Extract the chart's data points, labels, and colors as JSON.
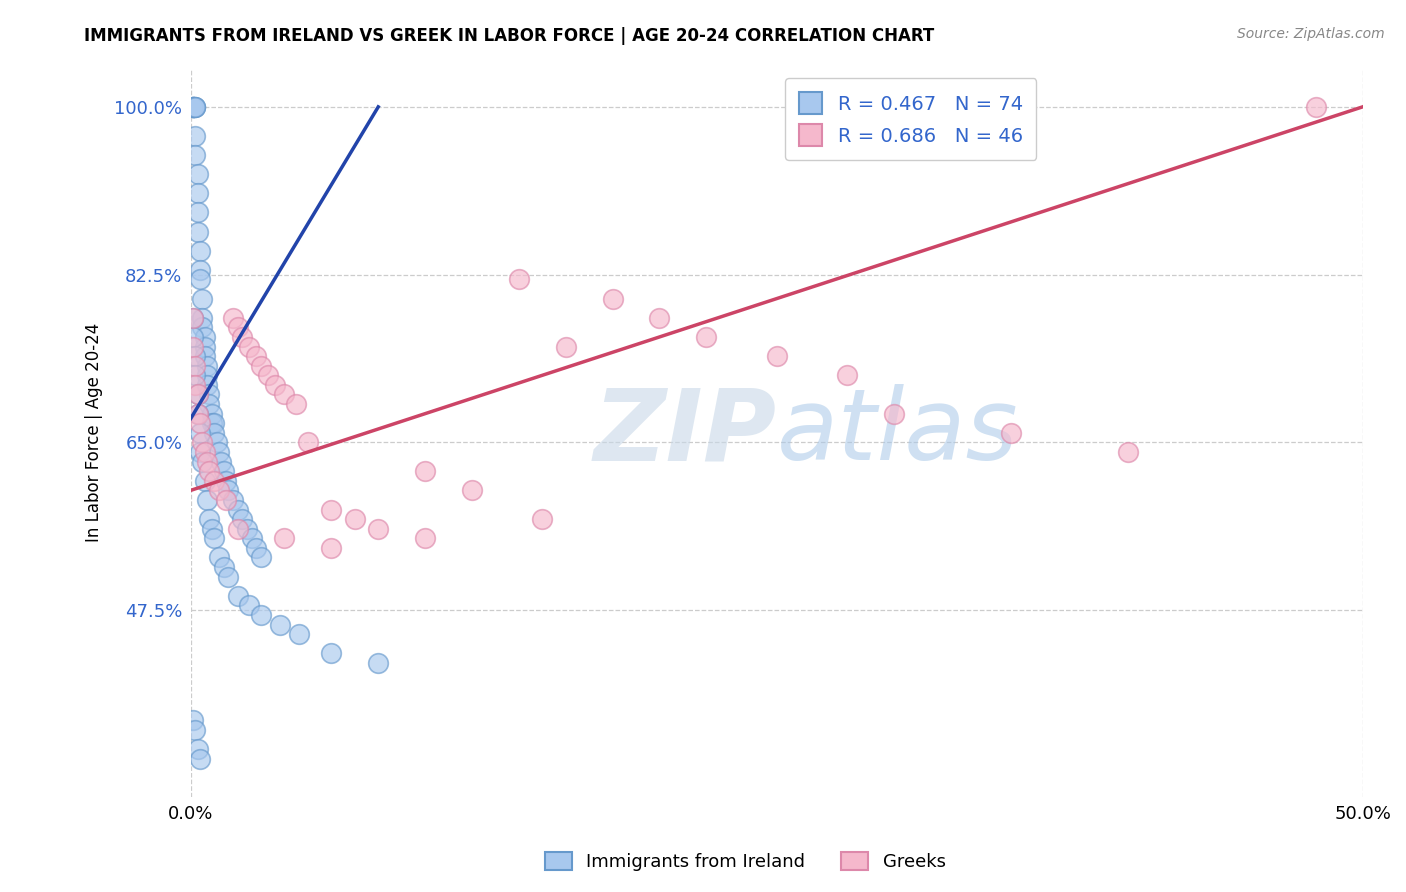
{
  "title": "IMMIGRANTS FROM IRELAND VS GREEK IN LABOR FORCE | AGE 20-24 CORRELATION CHART",
  "source": "Source: ZipAtlas.com",
  "ylabel": "In Labor Force | Age 20-24",
  "ireland_face_color": "#a8c8ee",
  "ireland_edge_color": "#6699cc",
  "greek_face_color": "#f5b8cc",
  "greek_edge_color": "#dd88aa",
  "ireland_line_color": "#2244aa",
  "greek_line_color": "#cc4466",
  "blue_text_color": "#3366cc",
  "legend_r1": "0.467",
  "legend_n1": "74",
  "legend_r2": "0.686",
  "legend_n2": "46",
  "xlim": [
    0.0,
    0.5
  ],
  "ylim": [
    0.28,
    1.04
  ],
  "ytick_vals": [
    1.0,
    0.825,
    0.65,
    0.475
  ],
  "ytick_labels": [
    "100.0%",
    "82.5%",
    "65.0%",
    "47.5%"
  ],
  "xtick_vals": [
    0.0,
    0.5
  ],
  "xtick_labels": [
    "0.0%",
    "50.0%"
  ],
  "ireland_x": [
    0.001,
    0.001,
    0.001,
    0.001,
    0.001,
    0.001,
    0.002,
    0.002,
    0.002,
    0.002,
    0.002,
    0.003,
    0.003,
    0.003,
    0.003,
    0.004,
    0.004,
    0.004,
    0.005,
    0.005,
    0.005,
    0.006,
    0.006,
    0.006,
    0.007,
    0.007,
    0.007,
    0.008,
    0.008,
    0.009,
    0.009,
    0.01,
    0.01,
    0.011,
    0.012,
    0.013,
    0.014,
    0.015,
    0.016,
    0.018,
    0.02,
    0.022,
    0.024,
    0.026,
    0.028,
    0.03,
    0.001,
    0.001,
    0.002,
    0.002,
    0.003,
    0.003,
    0.004,
    0.004,
    0.005,
    0.006,
    0.007,
    0.008,
    0.009,
    0.01,
    0.012,
    0.014,
    0.016,
    0.02,
    0.025,
    0.03,
    0.038,
    0.046,
    0.06,
    0.08,
    0.001,
    0.002,
    0.003,
    0.004
  ],
  "ireland_y": [
    1.0,
    1.0,
    1.0,
    1.0,
    1.0,
    1.0,
    1.0,
    1.0,
    1.0,
    0.97,
    0.95,
    0.93,
    0.91,
    0.89,
    0.87,
    0.85,
    0.83,
    0.82,
    0.8,
    0.78,
    0.77,
    0.76,
    0.75,
    0.74,
    0.73,
    0.72,
    0.71,
    0.7,
    0.69,
    0.68,
    0.67,
    0.67,
    0.66,
    0.65,
    0.64,
    0.63,
    0.62,
    0.61,
    0.6,
    0.59,
    0.58,
    0.57,
    0.56,
    0.55,
    0.54,
    0.53,
    0.78,
    0.76,
    0.74,
    0.72,
    0.7,
    0.68,
    0.66,
    0.64,
    0.63,
    0.61,
    0.59,
    0.57,
    0.56,
    0.55,
    0.53,
    0.52,
    0.51,
    0.49,
    0.48,
    0.47,
    0.46,
    0.45,
    0.43,
    0.42,
    0.36,
    0.35,
    0.33,
    0.32
  ],
  "greek_x": [
    0.001,
    0.001,
    0.002,
    0.002,
    0.003,
    0.003,
    0.004,
    0.005,
    0.006,
    0.007,
    0.008,
    0.01,
    0.012,
    0.015,
    0.018,
    0.02,
    0.022,
    0.025,
    0.028,
    0.03,
    0.033,
    0.036,
    0.04,
    0.045,
    0.05,
    0.06,
    0.07,
    0.08,
    0.1,
    0.12,
    0.14,
    0.16,
    0.18,
    0.2,
    0.22,
    0.25,
    0.28,
    0.02,
    0.04,
    0.06,
    0.1,
    0.15,
    0.48,
    0.3,
    0.35,
    0.4
  ],
  "greek_y": [
    0.78,
    0.75,
    0.73,
    0.71,
    0.7,
    0.68,
    0.67,
    0.65,
    0.64,
    0.63,
    0.62,
    0.61,
    0.6,
    0.59,
    0.78,
    0.77,
    0.76,
    0.75,
    0.74,
    0.73,
    0.72,
    0.71,
    0.7,
    0.69,
    0.65,
    0.58,
    0.57,
    0.56,
    0.62,
    0.6,
    0.82,
    0.75,
    0.8,
    0.78,
    0.76,
    0.74,
    0.72,
    0.56,
    0.55,
    0.54,
    0.55,
    0.57,
    1.0,
    0.68,
    0.66,
    0.64
  ],
  "ireland_line_x": [
    0.0,
    0.08
  ],
  "ireland_line_y": [
    0.675,
    1.0
  ],
  "greek_line_x": [
    0.0,
    0.5
  ],
  "greek_line_y": [
    0.6,
    1.0
  ]
}
